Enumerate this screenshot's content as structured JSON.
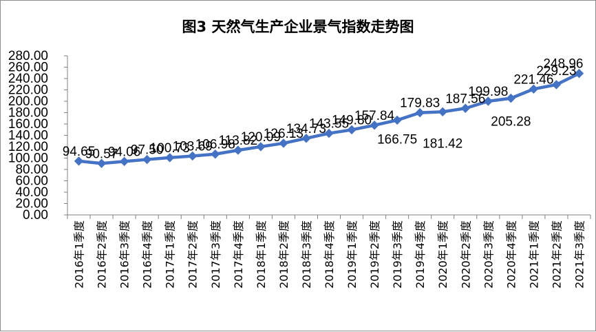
{
  "chart_data": {
    "type": "line",
    "title": "图3  天然气生产企业景气指数走势图",
    "xlabel": "",
    "ylabel": "",
    "ylim": [
      0,
      280
    ],
    "ytick_step": 20,
    "ytick_labels": [
      "0.00",
      "20.00",
      "40.00",
      "60.00",
      "80.00",
      "100.00",
      "120.00",
      "140.00",
      "160.00",
      "180.00",
      "200.00",
      "220.00",
      "240.00",
      "260.00",
      "280.00"
    ],
    "grid": false,
    "legend": "none",
    "line_color": "#4472c4",
    "categories": [
      "2016年1季度",
      "2016年2季度",
      "2016年3季度",
      "2016年4季度",
      "2017年1季度",
      "2017年2季度",
      "2017年3季度",
      "2017年4季度",
      "2018年1季度",
      "2018年2季度",
      "2018年3季度",
      "2018年4季度",
      "2019年1季度",
      "2019年2季度",
      "2019年3季度",
      "2019年4季度",
      "2020年1季度",
      "2020年2季度",
      "2020年3季度",
      "2020年4季度",
      "2021年1季度",
      "2021年2季度",
      "2021年3季度"
    ],
    "values": [
      94.65,
      90.57,
      94.06,
      97.5,
      100.73,
      103.69,
      106.98,
      113.82,
      120.09,
      126.13,
      134.73,
      143.55,
      149.8,
      157.84,
      166.75,
      179.83,
      181.42,
      187.56,
      199.98,
      205.28,
      221.46,
      229.23,
      248.96
    ],
    "data_labels": [
      "94.65",
      "90.57",
      "94.06",
      "97.50",
      "100.73",
      "103.69",
      "106.98",
      "113.82",
      "120.09",
      "126.13",
      "134.73",
      "143.55",
      "149.80",
      "157.84",
      "166.75",
      "179.83",
      "181.42",
      "187.56",
      "199.98",
      "205.28",
      "221.46",
      "229.23",
      "248.96"
    ]
  }
}
